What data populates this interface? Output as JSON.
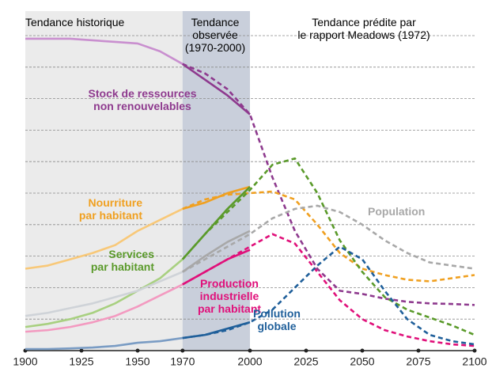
{
  "chart_data": {
    "type": "line",
    "periods": [
      {
        "label": "Tendance historique",
        "start": 1900,
        "end": 1970,
        "color": "#ebebeb"
      },
      {
        "label": "Tendance\nobservée\n(1970-2000)",
        "start": 1970,
        "end": 2000,
        "color": "#c9cfdb"
      },
      {
        "label": "Tendance prédite par\nle rapport Meadows (1972)",
        "start": 2000,
        "end": 2100,
        "color": "#ffffff"
      }
    ],
    "x": [
      1900,
      1910,
      1920,
      1930,
      1940,
      1950,
      1960,
      1970,
      1980,
      1990,
      2000,
      2010,
      2020,
      2030,
      2040,
      2050,
      2060,
      2070,
      2080,
      2090,
      2100
    ],
    "xlim": [
      1900,
      2100
    ],
    "xticks": [
      1900,
      1925,
      1950,
      1970,
      2000,
      2025,
      2050,
      2075,
      2100
    ],
    "ylim": [
      0,
      100
    ],
    "yticks": [
      10,
      20,
      30,
      40,
      50,
      60,
      70,
      80,
      90,
      100
    ],
    "grid": true,
    "show_ytick_labels": false,
    "series": [
      {
        "name": "Stock de ressources\nnon renouvelables",
        "color": "#8e3a8e",
        "history_color": "#c98fcf",
        "values": [
          99,
          99,
          99,
          98.5,
          98,
          97.5,
          95,
          91,
          86,
          81,
          75,
          null,
          null,
          null,
          null,
          null,
          null,
          null,
          null,
          null,
          null
        ],
        "predicted": [
          null,
          null,
          null,
          null,
          null,
          null,
          null,
          91,
          88,
          83,
          75,
          55,
          38,
          26,
          19,
          18,
          16.5,
          15.5,
          15,
          14.8,
          14.5
        ]
      },
      {
        "name": "Nourriture\npar habitant",
        "color": "#f0a020",
        "history_color": "#f8c878",
        "values": [
          26,
          27,
          29,
          31,
          33.5,
          38,
          41.5,
          45,
          47,
          50,
          52,
          null,
          null,
          null,
          null,
          null,
          null,
          null,
          null,
          null,
          null
        ],
        "predicted": [
          null,
          null,
          null,
          null,
          null,
          null,
          null,
          45,
          48,
          49.5,
          50,
          50.5,
          48,
          40,
          31,
          26,
          24,
          22.5,
          22,
          23,
          24
        ]
      },
      {
        "name": "Services\npar habitant",
        "color": "#5a9a2a",
        "history_color": "#a8d080",
        "values": [
          7.5,
          8.5,
          10,
          12,
          15,
          19,
          23,
          29,
          37,
          45,
          52,
          null,
          null,
          null,
          null,
          null,
          null,
          null,
          null,
          null,
          null
        ],
        "predicted": [
          null,
          null,
          null,
          null,
          null,
          null,
          null,
          29,
          37,
          44,
          51,
          59,
          61,
          50,
          35,
          25,
          17,
          13,
          10.5,
          8,
          5
        ]
      },
      {
        "name": "Population",
        "color": "#a8a8a8",
        "history_color": "#cfd3d8",
        "values": [
          11,
          12,
          13.5,
          15,
          17,
          19,
          22,
          25,
          30,
          34.5,
          38,
          null,
          null,
          null,
          null,
          null,
          null,
          null,
          null,
          null,
          null
        ],
        "predicted": [
          null,
          null,
          null,
          null,
          null,
          null,
          null,
          25,
          29,
          33,
          37,
          42,
          45,
          46,
          44,
          40,
          35,
          31,
          28,
          27,
          26
        ]
      },
      {
        "name": "Production\nindustrielle\npar habitant",
        "color": "#e0107a",
        "history_color": "#f39ac0",
        "values": [
          6,
          6.5,
          7.5,
          9,
          11,
          14,
          17.5,
          21,
          25,
          29,
          32,
          null,
          null,
          null,
          null,
          null,
          null,
          null,
          null,
          null,
          null
        ],
        "predicted": [
          null,
          null,
          null,
          null,
          null,
          null,
          null,
          21,
          25,
          29,
          33,
          37,
          34,
          25,
          16,
          10,
          6.5,
          4.5,
          3,
          2,
          1.5
        ]
      },
      {
        "name": "Pollution\nglobale",
        "color": "#1f5f9a",
        "history_color": "#7a9cc4",
        "values": [
          0.5,
          0.5,
          0.7,
          1,
          1.5,
          2.5,
          3,
          4,
          5,
          7,
          9,
          null,
          null,
          null,
          null,
          null,
          null,
          null,
          null,
          null,
          null
        ],
        "predicted": [
          null,
          null,
          null,
          null,
          null,
          null,
          null,
          4,
          5,
          6.5,
          9,
          13,
          20,
          27,
          33,
          29,
          19,
          10,
          5,
          3,
          2
        ]
      }
    ]
  }
}
